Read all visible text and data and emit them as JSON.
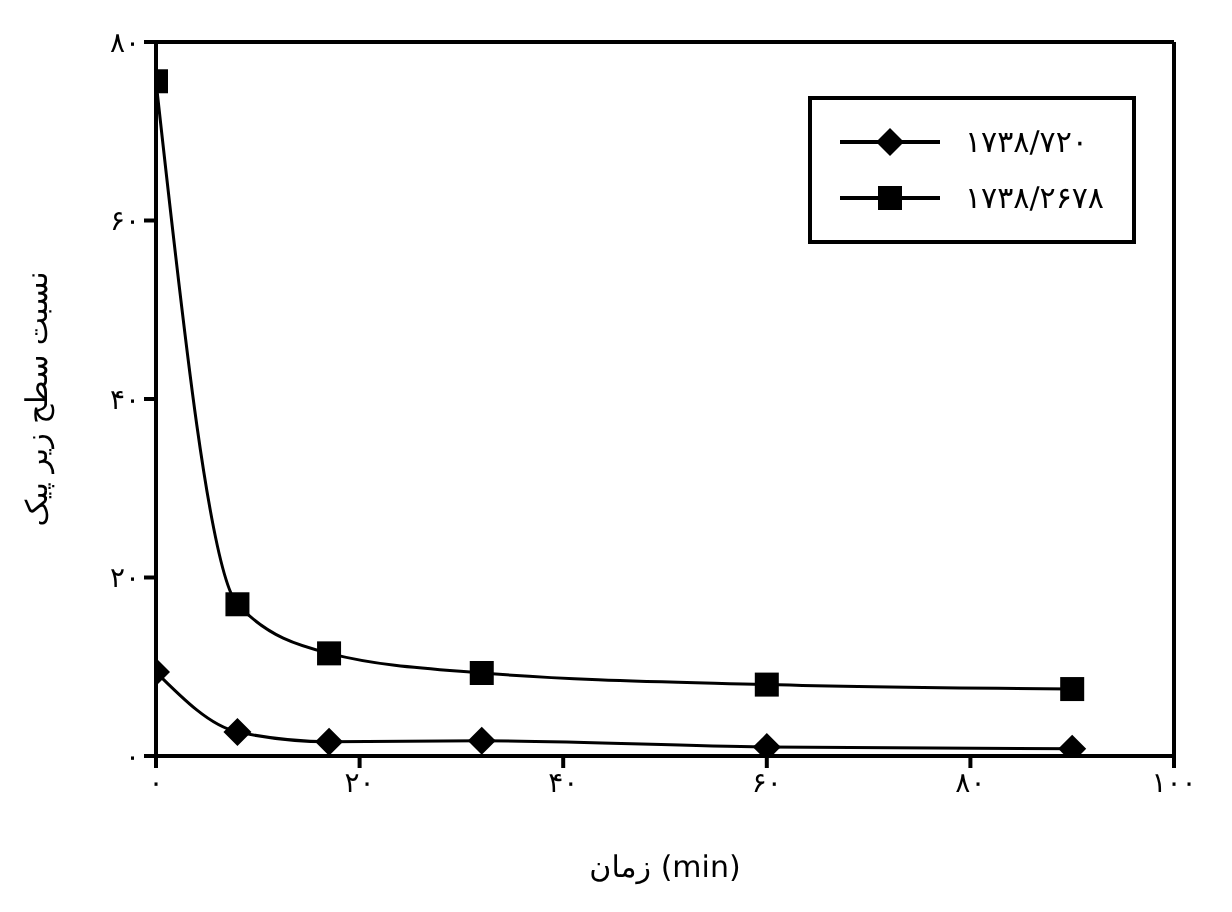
{
  "chart_data": {
    "type": "line",
    "xlabel": "زمان (min)",
    "ylabel": "نسبت سطح زیر پیک",
    "x": [
      0,
      8,
      17,
      32,
      60,
      90
    ],
    "series": [
      {
        "name": "۱۷۳۸/۷۲۰",
        "color": "#000000",
        "marker": "diamond",
        "values": [
          9.4,
          2.7,
          1.6,
          1.7,
          1.0,
          0.8
        ]
      },
      {
        "name": "۱۷۳۸/۲۶۷۸",
        "color": "#000000",
        "marker": "square",
        "values": [
          75.6,
          17.0,
          11.5,
          9.3,
          8.0,
          7.5
        ]
      }
    ],
    "xlim": [
      0,
      100
    ],
    "xticks": [
      {
        "value": 0,
        "label": "۰"
      },
      {
        "value": 20,
        "label": "۲۰"
      },
      {
        "value": 40,
        "label": "۴۰"
      },
      {
        "value": 60,
        "label": "۶۰"
      },
      {
        "value": 80,
        "label": "۸۰"
      },
      {
        "value": 100,
        "label": "۱۰۰"
      }
    ],
    "ylim": [
      0,
      80
    ],
    "yticks": [
      {
        "value": 0,
        "label": "۰"
      },
      {
        "value": 20,
        "label": "۲۰"
      },
      {
        "value": 40,
        "label": "۴۰"
      },
      {
        "value": 60,
        "label": "۶۰"
      },
      {
        "value": 80,
        "label": "۸۰"
      }
    ],
    "grid": false,
    "legend": "top right",
    "line_style": "solid"
  }
}
